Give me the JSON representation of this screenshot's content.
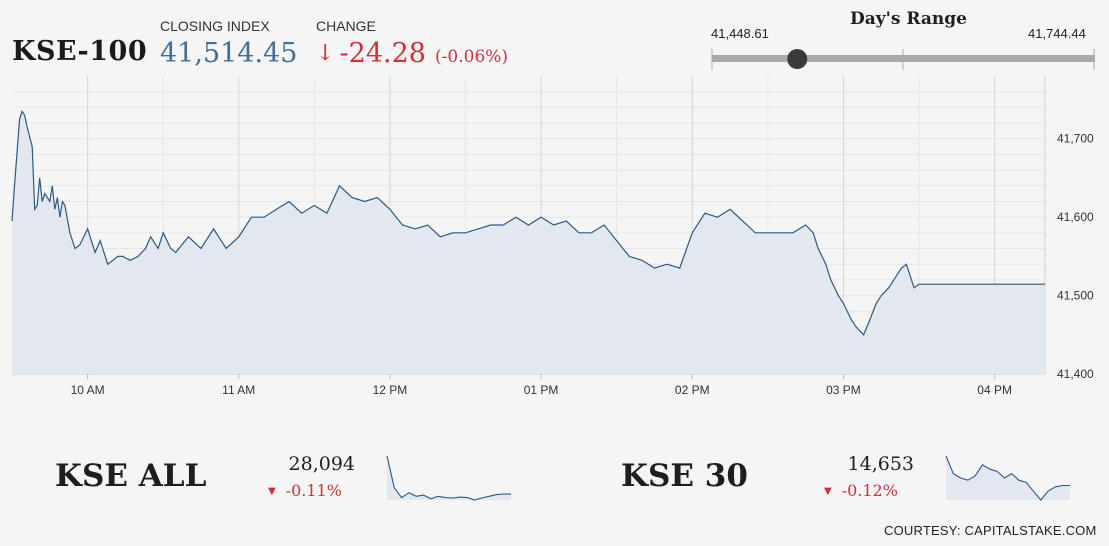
{
  "header": {
    "index_name": "KSE-100",
    "closing_label": "CLOSING INDEX",
    "closing_value": "41,514.45",
    "change_label": "CHANGE",
    "change_arrow": "↓",
    "change_value": "-24.28",
    "change_pct": "(-0.06%)"
  },
  "days_range": {
    "title": "Day's Range",
    "low_label": "41,448.61",
    "high_label": "41,744.44",
    "low": 41448.61,
    "high": 41744.44,
    "current": 41514.45
  },
  "colors": {
    "line": "#2b5a86",
    "fill": "#e3e8ee",
    "down": "#d0303a",
    "value_blue": "#3f6e96",
    "grid": "#e0e0e0"
  },
  "chart_data": [
    {
      "type": "area",
      "title": "",
      "xlabel": "",
      "ylabel": "",
      "x_ticks": [
        "10 AM",
        "11 AM",
        "12 PM",
        "01 PM",
        "02 PM",
        "03 PM",
        "04 PM"
      ],
      "y_ticks": [
        41400,
        41500,
        41600,
        41700
      ],
      "ylim": [
        41400,
        41780
      ],
      "xlim": [
        "09:30",
        "16:20"
      ],
      "grid": true,
      "series": [
        {
          "x": [
            "09:30",
            "09:31",
            "09:33",
            "09:34",
            "09:35",
            "09:36",
            "09:38",
            "09:39",
            "09:40",
            "09:41",
            "09:42",
            "09:43",
            "09:45",
            "09:46",
            "09:47",
            "09:48",
            "09:49",
            "09:50",
            "09:51",
            "09:53",
            "09:55",
            "09:57",
            "10:00",
            "10:03",
            "10:05",
            "10:08",
            "10:10",
            "10:12",
            "10:14",
            "10:15",
            "10:17",
            "10:20",
            "10:23",
            "10:25",
            "10:28",
            "10:30",
            "10:33",
            "10:35",
            "10:40",
            "10:45",
            "10:50",
            "10:55",
            "11:00",
            "11:05",
            "11:10",
            "11:15",
            "11:20",
            "11:25",
            "11:30",
            "11:35",
            "11:40",
            "11:45",
            "11:50",
            "11:55",
            "12:00",
            "12:05",
            "12:10",
            "12:15",
            "12:20",
            "12:25",
            "12:30",
            "12:35",
            "12:40",
            "12:45",
            "12:50",
            "12:55",
            "13:00",
            "13:05",
            "13:10",
            "13:15",
            "13:20",
            "13:25",
            "13:30",
            "13:35",
            "13:40",
            "13:45",
            "13:50",
            "13:55",
            "14:00",
            "14:05",
            "14:10",
            "14:15",
            "14:20",
            "14:25",
            "14:30",
            "14:35",
            "14:40",
            "14:45",
            "14:48",
            "14:50",
            "14:53",
            "14:55",
            "14:58",
            "15:00",
            "15:03",
            "15:05",
            "15:08",
            "15:10",
            "15:13",
            "15:15",
            "15:18",
            "15:20",
            "15:23",
            "15:25",
            "15:28",
            "15:30",
            "15:32",
            "16:20"
          ],
          "y": [
            41595,
            41640,
            41725,
            41735,
            41730,
            41715,
            41690,
            41610,
            41615,
            41650,
            41620,
            41630,
            41620,
            41640,
            41610,
            41625,
            41600,
            41620,
            41615,
            41580,
            41560,
            41565,
            41585,
            41555,
            41570,
            41540,
            41545,
            41550,
            41550,
            41548,
            41545,
            41550,
            41560,
            41575,
            41560,
            41580,
            41560,
            41555,
            41575,
            41560,
            41585,
            41560,
            41575,
            41600,
            41600,
            41610,
            41620,
            41605,
            41615,
            41605,
            41640,
            41625,
            41620,
            41625,
            41610,
            41590,
            41585,
            41590,
            41575,
            41580,
            41580,
            41585,
            41590,
            41590,
            41600,
            41590,
            41600,
            41590,
            41595,
            41580,
            41580,
            41590,
            41570,
            41550,
            41545,
            41535,
            41540,
            41535,
            41580,
            41605,
            41600,
            41610,
            41595,
            41580,
            41580,
            41580,
            41580,
            41590,
            41580,
            41560,
            41540,
            41520,
            41500,
            41490,
            41470,
            41460,
            41450,
            41465,
            41490,
            41500,
            41510,
            41520,
            41535,
            41540,
            41510,
            41514.45,
            41514.45,
            41514.45
          ]
        }
      ]
    },
    {
      "type": "area",
      "title": "KSE ALL",
      "value": "28,094",
      "change": "-0.11%",
      "arrow": "▼",
      "series": [
        {
          "y": [
            28250,
            28120,
            28080,
            28100,
            28085,
            28090,
            28075,
            28085,
            28080,
            28078,
            28082,
            28080,
            28070,
            28078,
            28085,
            28092,
            28094,
            28094
          ]
        }
      ]
    },
    {
      "type": "area",
      "title": "KSE 30",
      "value": "14,653",
      "change": "-0.12%",
      "arrow": "▼",
      "series": [
        {
          "y": [
            14720,
            14680,
            14670,
            14665,
            14675,
            14700,
            14690,
            14685,
            14670,
            14680,
            14665,
            14660,
            14640,
            14620,
            14640,
            14650,
            14653,
            14653
          ]
        }
      ]
    }
  ],
  "footer": {
    "courtesy": "COURTESY: CAPITALSTAKE.COM"
  }
}
